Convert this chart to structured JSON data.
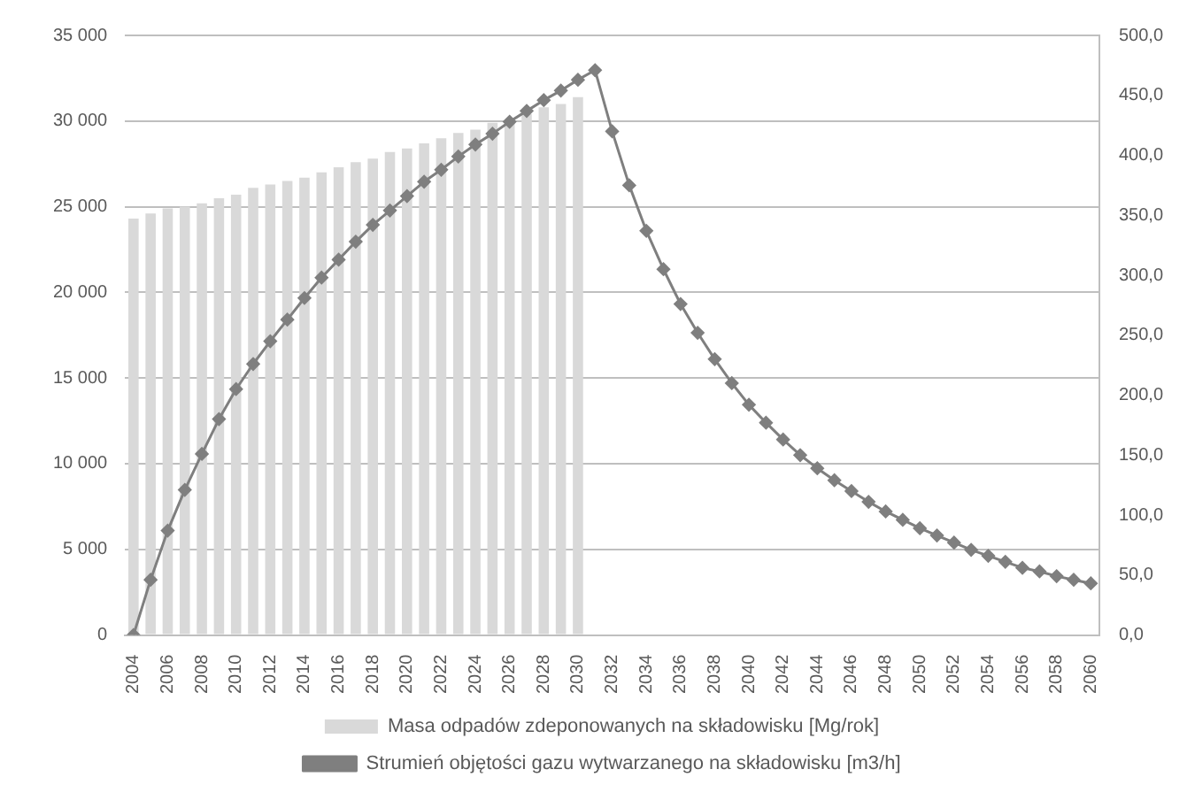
{
  "chart_data": {
    "type": "bar",
    "categories": [
      "2004",
      null,
      "2006",
      null,
      "2008",
      null,
      "2010",
      null,
      "2012",
      null,
      "2014",
      null,
      "2016",
      null,
      "2018",
      null,
      "2020",
      null,
      "2022",
      null,
      "2024",
      null,
      "2026",
      null,
      "2028",
      null,
      "2030",
      null,
      "2032",
      null,
      "2034",
      null,
      "2036",
      null,
      "2038",
      null,
      "2040",
      null,
      "2042",
      null,
      "2044",
      null,
      "2046",
      null,
      "2048",
      null,
      "2050",
      null,
      "2052",
      null,
      "2054",
      null,
      "2056",
      null,
      "2058",
      null,
      "2060"
    ],
    "series": [
      {
        "name": "Masa odpadów zdeponowanych na składowisku [Mg/rok]",
        "color": "#d9d9d9",
        "values": [
          24300,
          24600,
          24900,
          25000,
          25200,
          25500,
          25700,
          26100,
          26300,
          26500,
          26700,
          27000,
          27300,
          27600,
          27800,
          28200,
          28400,
          28700,
          29000,
          29300,
          29500,
          29900,
          30100,
          30400,
          30800,
          31000,
          31400,
          null,
          null,
          null,
          null,
          null,
          null,
          null,
          null,
          null,
          null,
          null,
          null,
          null,
          null,
          null,
          null,
          null,
          null,
          null,
          null,
          null,
          null,
          null,
          null,
          null,
          null,
          null,
          null,
          null,
          null
        ]
      },
      {
        "name": "Strumień objętości gazu wytwarzanego na składowisku [m3/h]",
        "type": "line",
        "axis": "y2",
        "color": "#7f7f7f",
        "marker": "diamond",
        "values": [
          0,
          46,
          87,
          121,
          151,
          180,
          205,
          226,
          245,
          263,
          281,
          298,
          313,
          328,
          342,
          354,
          366,
          378,
          388,
          399,
          409,
          418,
          428,
          437,
          446,
          454,
          463,
          471,
          420,
          375,
          337,
          305,
          276,
          252,
          230,
          210,
          192,
          177,
          163,
          150,
          139,
          129,
          120,
          111,
          103,
          96,
          89,
          83,
          77,
          71,
          66,
          61,
          56,
          53,
          49,
          46,
          43
        ]
      }
    ],
    "ylim": [
      0,
      35000
    ],
    "yticks": [
      {
        "value": 0,
        "label": "0"
      },
      {
        "value": 5000,
        "label": "5 000"
      },
      {
        "value": 10000,
        "label": "10 000"
      },
      {
        "value": 15000,
        "label": "15 000"
      },
      {
        "value": 20000,
        "label": "20 000"
      },
      {
        "value": 25000,
        "label": "25 000"
      },
      {
        "value": 30000,
        "label": "30 000"
      },
      {
        "value": 35000,
        "label": "35 000"
      }
    ],
    "y2lim": [
      0,
      500
    ],
    "y2ticks": [
      {
        "value": 0,
        "label": "0,0"
      },
      {
        "value": 50,
        "label": "50,0"
      },
      {
        "value": 100,
        "label": "100,0"
      },
      {
        "value": 150,
        "label": "150,0"
      },
      {
        "value": 200,
        "label": "200,0"
      },
      {
        "value": 250,
        "label": "250,0"
      },
      {
        "value": 300,
        "label": "300,0"
      },
      {
        "value": 350,
        "label": "350,0"
      },
      {
        "value": 400,
        "label": "400,0"
      },
      {
        "value": 450,
        "label": "450,0"
      },
      {
        "value": 500,
        "label": "500,0"
      }
    ],
    "grid": "y",
    "legend": "bottom"
  }
}
